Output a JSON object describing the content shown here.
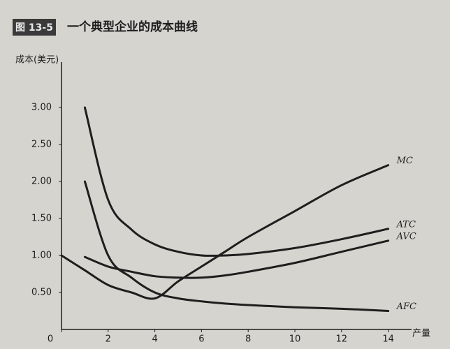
{
  "chart_data": {
    "type": "line",
    "figure_number": "图 13-5",
    "title": "一个典型企业的成本曲线",
    "y_label": "成本(美元)",
    "x_label": "产量",
    "x": [
      0,
      1,
      2,
      3,
      4,
      5,
      6,
      7,
      8,
      10,
      12,
      14
    ],
    "series": [
      {
        "name": "MC",
        "color": "#1e1e1e",
        "values": [
          1.0,
          0.8,
          0.6,
          0.5,
          0.42,
          0.65,
          0.85,
          1.05,
          1.25,
          1.6,
          1.95,
          2.22
        ]
      },
      {
        "name": "ATC",
        "color": "#1e1e1e",
        "values": [
          null,
          3.0,
          1.75,
          1.35,
          1.15,
          1.05,
          1.0,
          1.0,
          1.02,
          1.1,
          1.22,
          1.36
        ]
      },
      {
        "name": "AVC",
        "color": "#1e1e1e",
        "values": [
          null,
          0.98,
          0.85,
          0.78,
          0.72,
          0.7,
          0.7,
          0.73,
          0.78,
          0.9,
          1.05,
          1.2
        ]
      },
      {
        "name": "AFC",
        "color": "#1e1e1e",
        "values": [
          null,
          2.0,
          1.0,
          0.7,
          0.5,
          0.42,
          0.38,
          0.35,
          0.33,
          0.3,
          0.28,
          0.25
        ]
      }
    ],
    "xlim": [
      0,
      15
    ],
    "ylim": [
      0,
      3.5
    ],
    "xticks": [
      0,
      2,
      4,
      6,
      8,
      10,
      12,
      14
    ],
    "yticks": [
      {
        "value": 0.5,
        "label": "0.50"
      },
      {
        "value": 1.0,
        "label": "1.00"
      },
      {
        "value": 1.5,
        "label": "1.50"
      },
      {
        "value": 2.0,
        "label": "2.00"
      },
      {
        "value": 2.5,
        "label": "2.50"
      },
      {
        "value": 3.0,
        "label": "3.00"
      }
    ],
    "grid": false
  }
}
